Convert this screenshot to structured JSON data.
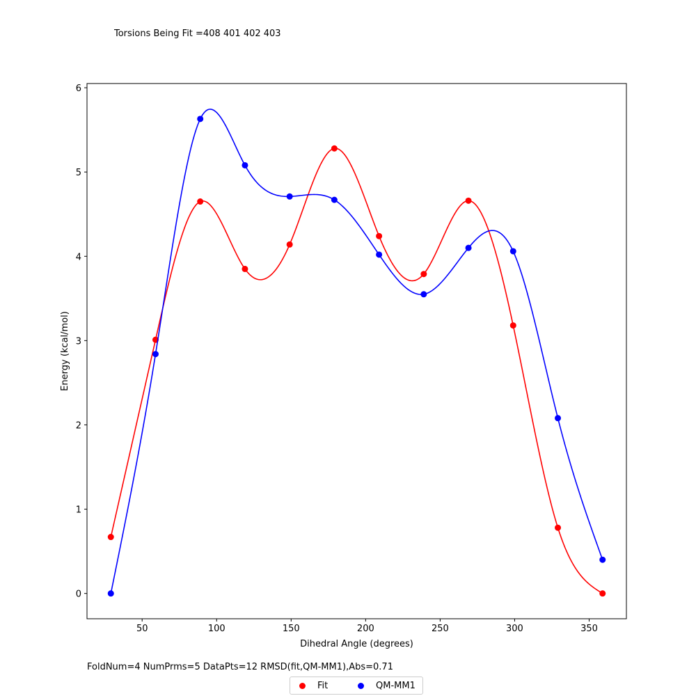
{
  "header_text": "Torsions Being Fit =408 401 402 403",
  "footer_text": "FoldNum=4 NumPrms=5 DataPts=12 RMSD(fit,QM-MM1),Abs=0.71",
  "chart_data": {
    "type": "line",
    "xlabel": "Dihedral Angle (degrees)",
    "ylabel": "Energy (kcal/mol)",
    "xlim": [
      13,
      375
    ],
    "ylim": [
      -0.3,
      6.05
    ],
    "x_ticks": [
      50,
      100,
      150,
      200,
      250,
      300,
      350
    ],
    "y_ticks": [
      0,
      1,
      2,
      3,
      4,
      5,
      6
    ],
    "grid": false,
    "legend_position": "bottom-center",
    "x": [
      29,
      59,
      89,
      119,
      149,
      179,
      209,
      239,
      269,
      299,
      329,
      359
    ],
    "series": [
      {
        "name": "Fit",
        "color": "#ff0000",
        "values": [
          0.67,
          3.01,
          4.65,
          3.85,
          4.14,
          5.28,
          4.24,
          3.79,
          4.66,
          3.18,
          0.78,
          0.0
        ]
      },
      {
        "name": "QM-MM1",
        "color": "#0000ff",
        "values": [
          0.0,
          2.84,
          5.63,
          5.08,
          4.71,
          4.67,
          4.02,
          3.55,
          4.1,
          4.06,
          2.08,
          0.4
        ]
      }
    ]
  }
}
